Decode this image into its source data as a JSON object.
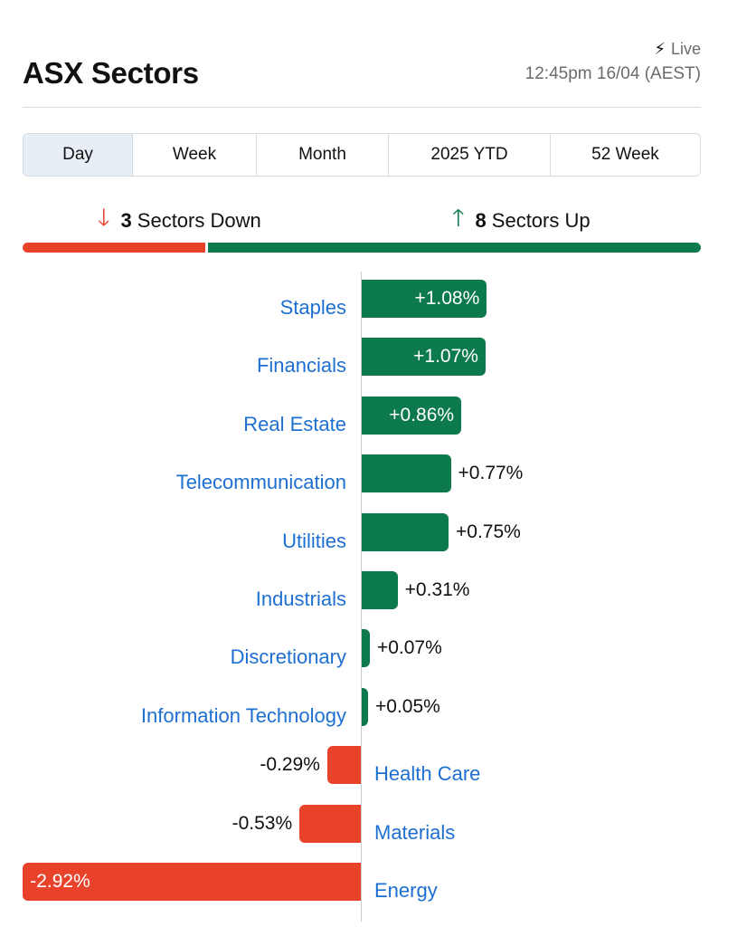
{
  "header": {
    "title": "ASX Sectors",
    "live_label": "Live",
    "timestamp": "12:45pm 16/04 (AEST)"
  },
  "tabs": [
    {
      "label": "Day",
      "active": true
    },
    {
      "label": "Week",
      "active": false
    },
    {
      "label": "Month",
      "active": false
    },
    {
      "label": "2025 YTD",
      "active": false
    },
    {
      "label": "52 Week",
      "active": false
    }
  ],
  "summary": {
    "down_count": "3",
    "down_label": "Sectors Down",
    "up_count": "8",
    "up_label": "Sectors Up"
  },
  "colors": {
    "up": "#0d7a4e",
    "down": "#e8432a",
    "label": "#1d6fd1"
  },
  "icons": {
    "live": "lightning-bolt",
    "down": "arrow-down",
    "up": "arrow-up"
  },
  "chart_data": {
    "type": "bar",
    "orientation": "horizontal",
    "categories": [
      "Staples",
      "Financials",
      "Real Estate",
      "Telecommunication",
      "Utilities",
      "Industrials",
      "Discretionary",
      "Information Technology",
      "Health Care",
      "Materials",
      "Energy"
    ],
    "values": [
      1.08,
      1.07,
      0.86,
      0.77,
      0.75,
      0.31,
      0.07,
      0.05,
      -0.29,
      -0.53,
      -2.92
    ],
    "value_labels": [
      "+1.08%",
      "+1.07%",
      "+0.86%",
      "+0.77%",
      "+0.75%",
      "+0.31%",
      "+0.07%",
      "+0.05%",
      "-0.29%",
      "-0.53%",
      "-2.92%"
    ]
  }
}
